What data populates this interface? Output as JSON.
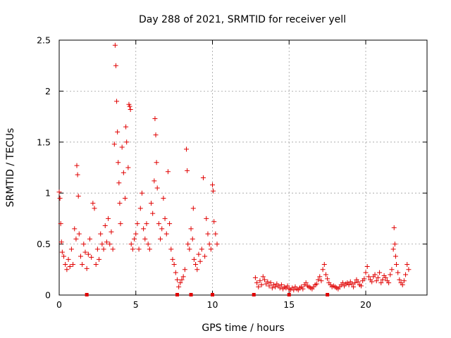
{
  "chart_data": {
    "type": "scatter",
    "title": "Day 288 of 2021, SRMTID for receiver yell",
    "xlabel": "GPS time / hours",
    "ylabel": "SRMTID / TECUs",
    "xlim": [
      0,
      24
    ],
    "ylim": [
      0,
      2.5
    ],
    "xticks": [
      0,
      5,
      10,
      15,
      20
    ],
    "yticks": [
      0,
      0.5,
      1,
      1.5,
      2,
      2.5
    ],
    "x_tick_labels": [
      "0",
      "5",
      "10",
      "15",
      "20"
    ],
    "y_tick_labels": [
      "0",
      "0.5",
      "1",
      "1.5",
      "2",
      "2.5"
    ],
    "grid": true,
    "series": [
      {
        "name": "SRMTID",
        "color": "#e00000",
        "marker": "plus",
        "points": [
          [
            0.0,
            1.01
          ],
          [
            0.05,
            0.95
          ],
          [
            0.1,
            0.7
          ],
          [
            0.15,
            0.52
          ],
          [
            0.2,
            0.42
          ],
          [
            0.3,
            0.38
          ],
          [
            0.4,
            0.3
          ],
          [
            0.5,
            0.25
          ],
          [
            0.6,
            0.35
          ],
          [
            0.7,
            0.28
          ],
          [
            0.8,
            0.45
          ],
          [
            0.9,
            0.3
          ],
          [
            1.0,
            0.65
          ],
          [
            1.1,
            0.55
          ],
          [
            1.15,
            1.27
          ],
          [
            1.2,
            1.18
          ],
          [
            1.25,
            0.97
          ],
          [
            1.3,
            0.6
          ],
          [
            1.4,
            0.38
          ],
          [
            1.5,
            0.3
          ],
          [
            1.6,
            0.5
          ],
          [
            1.7,
            0.42
          ],
          [
            1.8,
            0.26
          ],
          [
            1.9,
            0.4
          ],
          [
            2.0,
            0.55
          ],
          [
            2.1,
            0.37
          ],
          [
            2.2,
            0.9
          ],
          [
            2.3,
            0.85
          ],
          [
            2.4,
            0.3
          ],
          [
            2.5,
            0.45
          ],
          [
            2.6,
            0.35
          ],
          [
            2.7,
            0.6
          ],
          [
            2.8,
            0.5
          ],
          [
            2.9,
            0.45
          ],
          [
            3.0,
            0.68
          ],
          [
            3.1,
            0.52
          ],
          [
            3.2,
            0.75
          ],
          [
            3.3,
            0.5
          ],
          [
            3.4,
            0.62
          ],
          [
            3.5,
            0.45
          ],
          [
            3.6,
            1.48
          ],
          [
            3.65,
            2.45
          ],
          [
            3.7,
            2.25
          ],
          [
            3.75,
            1.9
          ],
          [
            3.8,
            1.6
          ],
          [
            3.85,
            1.3
          ],
          [
            3.9,
            1.1
          ],
          [
            3.95,
            0.9
          ],
          [
            4.0,
            0.7
          ],
          [
            4.1,
            1.45
          ],
          [
            4.2,
            1.2
          ],
          [
            4.3,
            0.95
          ],
          [
            4.35,
            1.65
          ],
          [
            4.4,
            1.5
          ],
          [
            4.5,
            1.25
          ],
          [
            4.55,
            1.87
          ],
          [
            4.6,
            1.85
          ],
          [
            4.65,
            1.82
          ],
          [
            4.7,
            0.5
          ],
          [
            4.8,
            0.45
          ],
          [
            4.9,
            0.55
          ],
          [
            5.0,
            0.6
          ],
          [
            5.1,
            0.7
          ],
          [
            5.2,
            0.45
          ],
          [
            5.3,
            0.85
          ],
          [
            5.4,
            1.0
          ],
          [
            5.5,
            0.65
          ],
          [
            5.6,
            0.55
          ],
          [
            5.7,
            0.7
          ],
          [
            5.8,
            0.5
          ],
          [
            5.9,
            0.45
          ],
          [
            6.0,
            0.9
          ],
          [
            6.1,
            0.8
          ],
          [
            6.2,
            1.12
          ],
          [
            6.25,
            1.73
          ],
          [
            6.3,
            1.57
          ],
          [
            6.35,
            1.3
          ],
          [
            6.4,
            1.05
          ],
          [
            6.5,
            0.7
          ],
          [
            6.6,
            0.55
          ],
          [
            6.7,
            0.65
          ],
          [
            6.8,
            0.95
          ],
          [
            6.9,
            0.75
          ],
          [
            7.0,
            0.6
          ],
          [
            7.1,
            1.21
          ],
          [
            7.2,
            0.7
          ],
          [
            7.3,
            0.45
          ],
          [
            7.4,
            0.35
          ],
          [
            7.5,
            0.3
          ],
          [
            7.6,
            0.22
          ],
          [
            7.7,
            0.15
          ],
          [
            7.8,
            0.08
          ],
          [
            7.9,
            0.12
          ],
          [
            8.0,
            0.15
          ],
          [
            8.1,
            0.18
          ],
          [
            8.2,
            0.25
          ],
          [
            8.3,
            1.43
          ],
          [
            8.35,
            1.22
          ],
          [
            8.4,
            0.5
          ],
          [
            8.5,
            0.45
          ],
          [
            8.6,
            0.65
          ],
          [
            8.7,
            0.55
          ],
          [
            8.75,
            0.85
          ],
          [
            8.8,
            0.35
          ],
          [
            8.9,
            0.3
          ],
          [
            9.0,
            0.25
          ],
          [
            9.1,
            0.4
          ],
          [
            9.2,
            0.33
          ],
          [
            9.3,
            0.45
          ],
          [
            9.4,
            1.15
          ],
          [
            9.5,
            0.38
          ],
          [
            9.6,
            0.75
          ],
          [
            9.7,
            0.6
          ],
          [
            9.8,
            0.5
          ],
          [
            9.9,
            0.45
          ],
          [
            10.0,
            1.08
          ],
          [
            10.05,
            1.02
          ],
          [
            10.1,
            0.72
          ],
          [
            10.2,
            0.6
          ],
          [
            10.3,
            0.5
          ],
          [
            12.8,
            0.17
          ],
          [
            12.9,
            0.12
          ],
          [
            13.0,
            0.08
          ],
          [
            13.1,
            0.14
          ],
          [
            13.2,
            0.1
          ],
          [
            13.3,
            0.18
          ],
          [
            13.4,
            0.15
          ],
          [
            13.5,
            0.11
          ],
          [
            13.6,
            0.13
          ],
          [
            13.7,
            0.09
          ],
          [
            13.8,
            0.12
          ],
          [
            13.9,
            0.07
          ],
          [
            14.0,
            0.1
          ],
          [
            14.1,
            0.08
          ],
          [
            14.2,
            0.11
          ],
          [
            14.3,
            0.09
          ],
          [
            14.4,
            0.07
          ],
          [
            14.5,
            0.1
          ],
          [
            14.6,
            0.06
          ],
          [
            14.7,
            0.08
          ],
          [
            14.8,
            0.07
          ],
          [
            14.9,
            0.09
          ],
          [
            15.0,
            0.06
          ],
          [
            15.1,
            0.05
          ],
          [
            15.2,
            0.07
          ],
          [
            15.3,
            0.05
          ],
          [
            15.4,
            0.08
          ],
          [
            15.5,
            0.06
          ],
          [
            15.6,
            0.05
          ],
          [
            15.7,
            0.07
          ],
          [
            15.8,
            0.08
          ],
          [
            15.9,
            0.06
          ],
          [
            16.0,
            0.1
          ],
          [
            16.1,
            0.12
          ],
          [
            16.2,
            0.09
          ],
          [
            16.3,
            0.08
          ],
          [
            16.4,
            0.07
          ],
          [
            16.5,
            0.06
          ],
          [
            16.6,
            0.08
          ],
          [
            16.7,
            0.1
          ],
          [
            16.8,
            0.11
          ],
          [
            16.9,
            0.15
          ],
          [
            17.0,
            0.18
          ],
          [
            17.1,
            0.14
          ],
          [
            17.2,
            0.25
          ],
          [
            17.3,
            0.3
          ],
          [
            17.4,
            0.2
          ],
          [
            17.5,
            0.16
          ],
          [
            17.6,
            0.12
          ],
          [
            17.7,
            0.1
          ],
          [
            17.8,
            0.08
          ],
          [
            17.9,
            0.09
          ],
          [
            18.0,
            0.08
          ],
          [
            18.1,
            0.07
          ],
          [
            18.2,
            0.06
          ],
          [
            18.3,
            0.08
          ],
          [
            18.4,
            0.1
          ],
          [
            18.5,
            0.12
          ],
          [
            18.6,
            0.09
          ],
          [
            18.7,
            0.11
          ],
          [
            18.8,
            0.12
          ],
          [
            18.9,
            0.1
          ],
          [
            19.0,
            0.13
          ],
          [
            19.1,
            0.11
          ],
          [
            19.2,
            0.08
          ],
          [
            19.3,
            0.12
          ],
          [
            19.4,
            0.15
          ],
          [
            19.5,
            0.13
          ],
          [
            19.6,
            0.1
          ],
          [
            19.7,
            0.09
          ],
          [
            19.8,
            0.14
          ],
          [
            19.9,
            0.16
          ],
          [
            20.0,
            0.22
          ],
          [
            20.1,
            0.28
          ],
          [
            20.2,
            0.18
          ],
          [
            20.3,
            0.15
          ],
          [
            20.4,
            0.13
          ],
          [
            20.5,
            0.18
          ],
          [
            20.6,
            0.2
          ],
          [
            20.7,
            0.14
          ],
          [
            20.8,
            0.17
          ],
          [
            20.9,
            0.22
          ],
          [
            21.0,
            0.12
          ],
          [
            21.1,
            0.15
          ],
          [
            21.2,
            0.19
          ],
          [
            21.3,
            0.17
          ],
          [
            21.4,
            0.14
          ],
          [
            21.5,
            0.12
          ],
          [
            21.6,
            0.2
          ],
          [
            21.7,
            0.25
          ],
          [
            21.8,
            0.45
          ],
          [
            21.85,
            0.66
          ],
          [
            21.9,
            0.5
          ],
          [
            21.95,
            0.38
          ],
          [
            22.0,
            0.3
          ],
          [
            22.1,
            0.22
          ],
          [
            22.2,
            0.15
          ],
          [
            22.3,
            0.12
          ],
          [
            22.4,
            0.1
          ],
          [
            22.5,
            0.14
          ],
          [
            22.6,
            0.2
          ],
          [
            22.7,
            0.3
          ],
          [
            22.8,
            0.25
          ]
        ]
      }
    ],
    "gap_markers": [
      1.8,
      7.7,
      8.6,
      10.0,
      12.7,
      15.0,
      17.5
    ]
  }
}
